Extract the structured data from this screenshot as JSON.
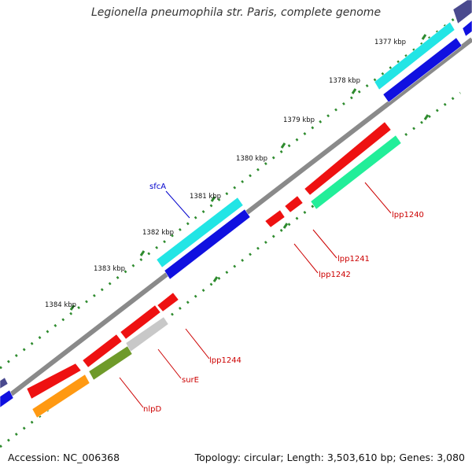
{
  "title": "Legionella pneumophila str. Paris, complete genome",
  "footer": {
    "accession": "Accession: NC_006368",
    "summary": "Topology: circular; Length: 3,503,610 bp; Genes: 3,080"
  },
  "colors": {
    "backbone": "#8a8a8a",
    "dotted_ring": "#2e8b2e",
    "label_red": "#cc0000",
    "label_blue": "#0000cc",
    "cyan": "#22e5e5",
    "blue": "#1010e0",
    "red": "#ee1111",
    "green": "#22ee99",
    "gray": "#c8c8c8",
    "olive": "#6f9a2a",
    "orange": "#ff9912",
    "navy": "#4a4a8e"
  },
  "tick_labels": [
    "1377 kbp",
    "1378 kbp",
    "1379 kbp",
    "1380 kbp",
    "1381 kbp",
    "1382 kbp",
    "1383 kbp",
    "1384 kbp"
  ],
  "gene_labels": [
    {
      "name": "lpp1240",
      "color": "red"
    },
    {
      "name": "lpp1241",
      "color": "red"
    },
    {
      "name": "lpp1242",
      "color": "red"
    },
    {
      "name": "sfcA",
      "color": "blue"
    },
    {
      "name": "lpp1244",
      "color": "red"
    },
    {
      "name": "surE",
      "color": "red"
    },
    {
      "name": "nlpD",
      "color": "red"
    }
  ]
}
